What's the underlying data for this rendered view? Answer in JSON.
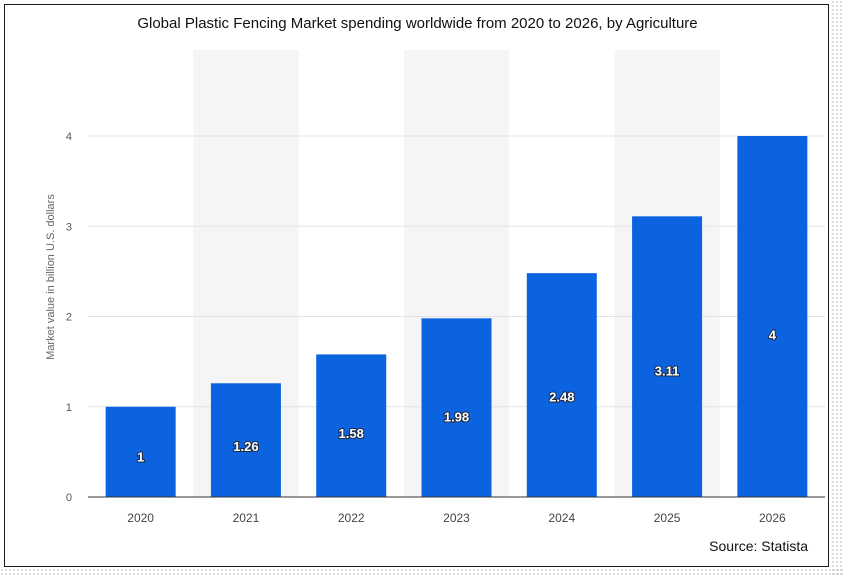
{
  "chart_data": {
    "type": "bar",
    "title": "Global Plastic Fencing Market spending worldwide from 2020 to 2026, by Agriculture",
    "xlabel": "",
    "ylabel": "Market value in billion U.S. dollars",
    "categories": [
      "2020",
      "2021",
      "2022",
      "2023",
      "2024",
      "2025",
      "2026"
    ],
    "values": [
      1,
      1.26,
      1.58,
      1.98,
      2.48,
      3.11,
      4
    ],
    "data_labels": [
      "1",
      "1.26",
      "1.58",
      "1.98",
      "2.48",
      "3.11",
      "4"
    ],
    "yticks": [
      "0",
      "1",
      "2",
      "3",
      "4"
    ],
    "ylim": [
      0,
      4.5
    ],
    "grid": true,
    "bar_color": "#0b63e0",
    "band_color": "#f5f5f5",
    "source": "Source: Statista"
  }
}
